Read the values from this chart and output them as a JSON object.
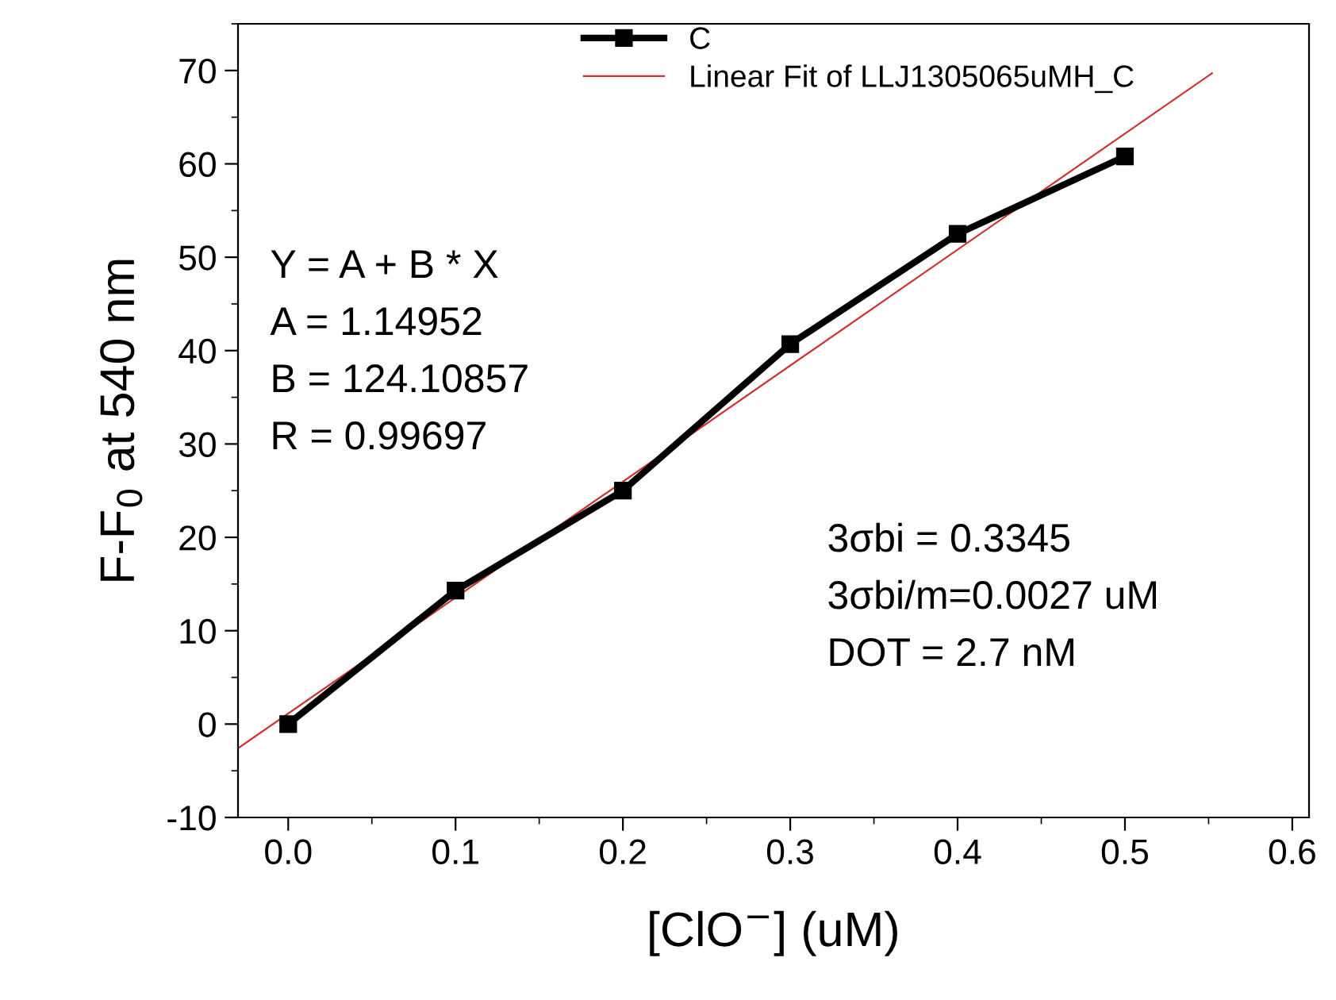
{
  "chart_data": {
    "type": "line",
    "xlabel": "[ClO$^{−}$] (uM)",
    "ylabel": "F-F$_{0}$ at 540 nm",
    "xlim": [
      -0.03,
      0.61
    ],
    "xticks": [
      {
        "value": 0,
        "label": "0.0"
      },
      0.1,
      0.2,
      0.3,
      0.4,
      0.5,
      0.6
    ],
    "ylim": [
      -10,
      75
    ],
    "yticks": [
      -10,
      0,
      10,
      20,
      30,
      40,
      50,
      60,
      70
    ],
    "series": [
      {
        "name": "C",
        "color": "#000000",
        "x": [
          0,
          0.1,
          0.2,
          0.3,
          0.4,
          0.5
        ],
        "values": [
          0,
          14.3,
          25,
          40.7,
          52.5,
          60.8
        ],
        "marker": "square",
        "line_style": "solid"
      },
      {
        "name": "Linear Fit of LLJ1305065uMH_C",
        "color": "#d03030",
        "x": [
          -0.03,
          0.552
        ],
        "values": [
          -2.6,
          69.7
        ],
        "marker": "none",
        "line_style": "solid"
      }
    ],
    "legend": "top",
    "grid": false,
    "annotations": [
      "Y = A + B * X",
      "A = 1.14952",
      "B = 124.10857",
      "R = 0.99697",
      "3σbi = 0.3345",
      "3σbi/m=0.0027 uM",
      "DOT = 2.7 nM"
    ]
  }
}
